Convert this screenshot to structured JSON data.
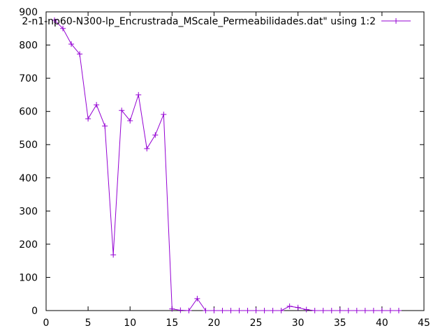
{
  "chart_data": {
    "type": "line",
    "title": "",
    "xlabel": "",
    "ylabel": "",
    "xlim": [
      0,
      45
    ],
    "ylim": [
      0,
      900
    ],
    "xticks": [
      0,
      5,
      10,
      15,
      20,
      25,
      30,
      35,
      40,
      45
    ],
    "yticks": [
      0,
      100,
      200,
      300,
      400,
      500,
      600,
      700,
      800,
      900
    ],
    "grid": false,
    "legend_position": "top-right",
    "series": [
      {
        "name": "2-n1-np60-N300-lp_Encrustrada_MScale_Permeabilidades.dat\" using 1:2",
        "color": "#9400d3",
        "marker": "plus",
        "x": [
          1,
          2,
          3,
          4,
          5,
          6,
          7,
          8,
          9,
          10,
          11,
          12,
          13,
          14,
          15,
          16,
          17,
          18,
          19,
          20,
          21,
          22,
          23,
          24,
          25,
          26,
          27,
          28,
          29,
          30,
          31,
          32,
          33,
          34,
          35,
          36,
          37,
          38,
          39,
          40,
          41,
          42
        ],
        "y": [
          875,
          850,
          803,
          773,
          578,
          620,
          556,
          168,
          603,
          572,
          650,
          488,
          529,
          591,
          5,
          1,
          0,
          36,
          0,
          0,
          0,
          0,
          0,
          0,
          0,
          0,
          0,
          0,
          13,
          9,
          3,
          0,
          0,
          0,
          0,
          0,
          0,
          0,
          0,
          0,
          0,
          0
        ]
      }
    ]
  }
}
